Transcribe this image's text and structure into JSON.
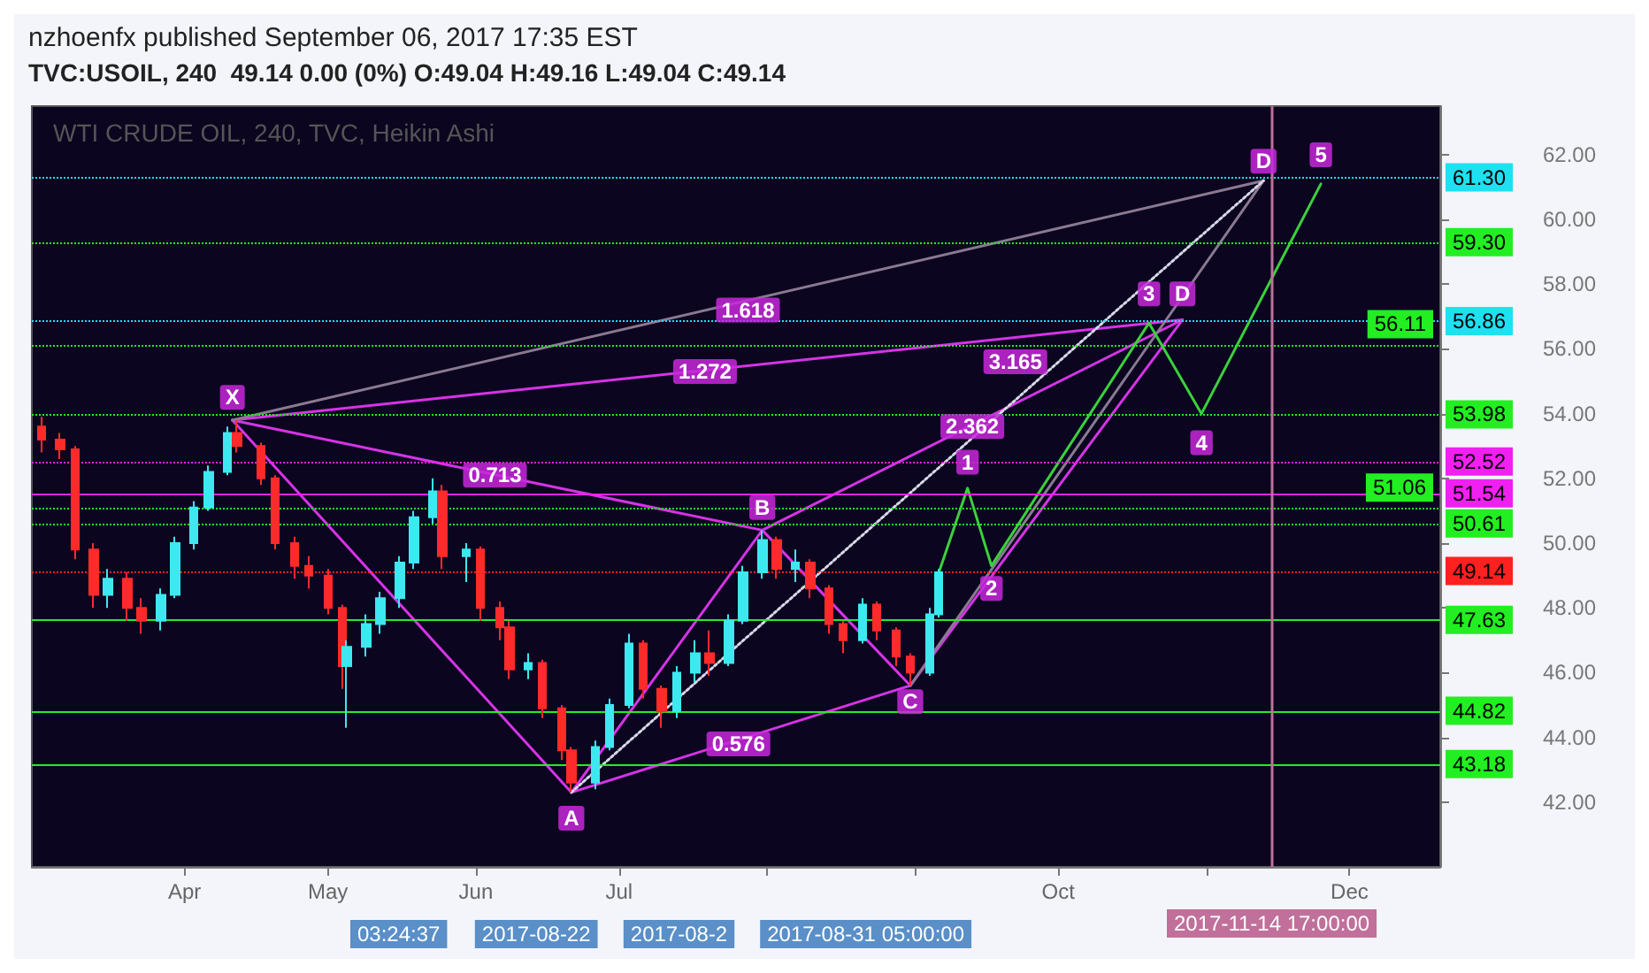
{
  "chart_data": {
    "type": "candlestick",
    "title": "nzhoenfx published September 06, 2017 17:35 EST",
    "subtitle": "TVC:USOIL, 240  49.14 0.00 (0%) O:49.04 H:49.16 L:49.04 C:49.14",
    "x": [
      "2017-03-02",
      "2017-03-06",
      "2017-03-09",
      "2017-03-13",
      "2017-03-16",
      "2017-03-20",
      "2017-03-23",
      "2017-03-27",
      "2017-03-30",
      "2017-04-03",
      "2017-04-06",
      "2017-04-10",
      "2017-04-12",
      "2017-04-17",
      "2017-04-20",
      "2017-04-24",
      "2017-04-27",
      "2017-05-01",
      "2017-05-04",
      "2017-05-05",
      "2017-05-09",
      "2017-05-12",
      "2017-05-16",
      "2017-05-19",
      "2017-05-23",
      "2017-05-25",
      "2017-05-30",
      "2017-06-02",
      "2017-06-06",
      "2017-06-08",
      "2017-06-12",
      "2017-06-15",
      "2017-06-19",
      "2017-06-21",
      "2017-06-26",
      "2017-06-29",
      "2017-07-03",
      "2017-07-06",
      "2017-07-10",
      "2017-07-13",
      "2017-07-17",
      "2017-07-20",
      "2017-07-24",
      "2017-07-27",
      "2017-07-31",
      "2017-08-03",
      "2017-08-07",
      "2017-08-10",
      "2017-08-14",
      "2017-08-17",
      "2017-08-21",
      "2017-08-24",
      "2017-08-28",
      "2017-08-31",
      "2017-09-04",
      "2017-09-06"
    ],
    "ohlc": [
      [
        53.6,
        53.9,
        52.8,
        53.2
      ],
      [
        53.2,
        53.4,
        52.6,
        52.9
      ],
      [
        52.9,
        53.0,
        49.5,
        49.8
      ],
      [
        49.8,
        50.0,
        48.0,
        48.4
      ],
      [
        48.4,
        49.2,
        48.0,
        48.9
      ],
      [
        48.9,
        49.1,
        47.6,
        48.0
      ],
      [
        48.0,
        48.3,
        47.2,
        47.6
      ],
      [
        47.6,
        48.6,
        47.3,
        48.4
      ],
      [
        48.4,
        50.2,
        48.3,
        50.0
      ],
      [
        50.0,
        51.3,
        49.8,
        51.1
      ],
      [
        51.1,
        52.4,
        51.0,
        52.2
      ],
      [
        52.2,
        53.6,
        52.1,
        53.4
      ],
      [
        53.4,
        53.8,
        52.8,
        53.0
      ],
      [
        53.0,
        53.1,
        51.8,
        52.0
      ],
      [
        52.0,
        52.1,
        49.8,
        50.0
      ],
      [
        50.0,
        50.2,
        48.9,
        49.3
      ],
      [
        49.3,
        49.6,
        48.6,
        49.0
      ],
      [
        49.0,
        49.2,
        47.8,
        48.0
      ],
      [
        48.0,
        48.1,
        45.5,
        46.2
      ],
      [
        46.2,
        47.0,
        44.3,
        46.8
      ],
      [
        46.8,
        47.8,
        46.5,
        47.5
      ],
      [
        47.5,
        48.5,
        47.2,
        48.3
      ],
      [
        48.3,
        49.6,
        48.0,
        49.4
      ],
      [
        49.4,
        51.0,
        49.2,
        50.8
      ],
      [
        50.8,
        52.0,
        50.6,
        51.6
      ],
      [
        51.6,
        51.8,
        49.2,
        49.6
      ],
      [
        49.6,
        50.0,
        48.8,
        49.8
      ],
      [
        49.8,
        49.9,
        47.6,
        48.0
      ],
      [
        48.0,
        48.2,
        47.0,
        47.4
      ],
      [
        47.4,
        47.6,
        45.8,
        46.1
      ],
      [
        46.1,
        46.6,
        45.8,
        46.3
      ],
      [
        46.3,
        46.4,
        44.6,
        44.9
      ],
      [
        44.9,
        45.0,
        43.3,
        43.6
      ],
      [
        43.6,
        43.7,
        42.3,
        42.6
      ],
      [
        42.6,
        43.9,
        42.4,
        43.7
      ],
      [
        43.7,
        45.2,
        43.6,
        45.0
      ],
      [
        45.0,
        47.2,
        44.9,
        46.9
      ],
      [
        46.9,
        47.0,
        45.2,
        45.5
      ],
      [
        45.5,
        45.6,
        44.3,
        44.8
      ],
      [
        44.8,
        46.2,
        44.6,
        46.0
      ],
      [
        46.0,
        47.0,
        45.7,
        46.6
      ],
      [
        46.6,
        47.3,
        45.9,
        46.3
      ],
      [
        46.3,
        47.8,
        46.2,
        47.6
      ],
      [
        47.6,
        49.3,
        47.5,
        49.1
      ],
      [
        49.1,
        50.4,
        48.9,
        50.1
      ],
      [
        50.1,
        50.2,
        48.9,
        49.2
      ],
      [
        49.2,
        49.8,
        48.8,
        49.4
      ],
      [
        49.4,
        49.5,
        48.3,
        48.6
      ],
      [
        48.6,
        48.7,
        47.2,
        47.5
      ],
      [
        47.5,
        47.6,
        46.6,
        47.0
      ],
      [
        47.0,
        48.3,
        46.9,
        48.1
      ],
      [
        48.1,
        48.2,
        47.0,
        47.3
      ],
      [
        47.3,
        47.4,
        46.2,
        46.5
      ],
      [
        46.5,
        46.6,
        45.6,
        46.0
      ],
      [
        46.0,
        48.0,
        45.9,
        47.8
      ],
      [
        47.8,
        49.2,
        47.7,
        49.1
      ]
    ],
    "colors": [
      "#ff2a2a",
      "#ff2a2a",
      "#ff2a2a",
      "#ff2a2a",
      "#3ee8f0",
      "#ff2a2a",
      "#ff2a2a",
      "#3ee8f0",
      "#3ee8f0",
      "#3ee8f0",
      "#3ee8f0",
      "#3ee8f0",
      "#ff2a2a",
      "#ff2a2a",
      "#ff2a2a",
      "#ff2a2a",
      "#ff2a2a",
      "#ff2a2a",
      "#ff2a2a",
      "#3ee8f0",
      "#3ee8f0",
      "#3ee8f0",
      "#3ee8f0",
      "#3ee8f0",
      "#3ee8f0",
      "#ff2a2a",
      "#3ee8f0",
      "#ff2a2a",
      "#ff2a2a",
      "#ff2a2a",
      "#3ee8f0",
      "#ff2a2a",
      "#ff2a2a",
      "#ff2a2a",
      "#3ee8f0",
      "#3ee8f0",
      "#3ee8f0",
      "#ff2a2a",
      "#ff2a2a",
      "#3ee8f0",
      "#3ee8f0",
      "#ff2a2a",
      "#3ee8f0",
      "#3ee8f0",
      "#3ee8f0",
      "#ff2a2a",
      "#3ee8f0",
      "#ff2a2a",
      "#ff2a2a",
      "#ff2a2a",
      "#3ee8f0",
      "#ff2a2a",
      "#ff2a2a",
      "#ff2a2a",
      "#3ee8f0",
      "#3ee8f0"
    ],
    "series": [
      {
        "type": "line",
        "color": "#d633e6",
        "x": [
          "2017-04-11",
          "2017-06-21",
          "2017-07-31",
          "2017-08-31",
          "2017-10-27"
        ],
        "values": [
          53.8,
          42.3,
          50.4,
          45.6,
          56.9
        ]
      },
      {
        "type": "line",
        "color": "#d633e6",
        "x": [
          "2017-04-11",
          "2017-07-31"
        ],
        "values": [
          53.8,
          50.4
        ]
      },
      {
        "type": "line",
        "color": "#d633e6",
        "x": [
          "2017-06-21",
          "2017-08-31"
        ],
        "values": [
          42.3,
          45.6
        ]
      },
      {
        "type": "line",
        "color": "#d633e6",
        "x": [
          "2017-04-11",
          "2017-10-27"
        ],
        "values": [
          53.8,
          56.9
        ]
      },
      {
        "type": "line",
        "color": "#d633e6",
        "x": [
          "2017-07-31",
          "2017-10-27"
        ],
        "values": [
          50.4,
          56.9
        ]
      },
      {
        "type": "line",
        "color": "#8a7a90",
        "x": [
          "2017-04-11",
          "2017-11-13"
        ],
        "values": [
          53.8,
          61.2
        ]
      },
      {
        "type": "line",
        "color": "#8a7a90",
        "x": [
          "2017-08-31",
          "2017-11-13"
        ],
        "values": [
          45.6,
          61.2
        ]
      },
      {
        "type": "line",
        "color": "#d8d8e8",
        "line_style": "dotted",
        "x": [
          "2017-06-21",
          "2017-11-13"
        ],
        "values": [
          42.3,
          61.2
        ]
      },
      {
        "type": "line",
        "color": "#3bd13b",
        "x": [
          "2017-09-06",
          "2017-09-12",
          "2017-09-17",
          "2017-10-20",
          "2017-10-31",
          "2017-11-25"
        ],
        "values": [
          49.1,
          51.7,
          49.3,
          56.8,
          54.0,
          61.1
        ]
      }
    ],
    "xlim": [
      "2017-02-28",
      "2017-12-20"
    ],
    "xticks": [
      {
        "value": "2017-04-01",
        "label": "Apr"
      },
      {
        "value": "2017-05-01",
        "label": "May"
      },
      {
        "value": "2017-06-01",
        "label": "Jun"
      },
      {
        "value": "2017-07-01",
        "label": "Jul"
      },
      {
        "value": "2017-08-01",
        "label": null
      },
      {
        "value": "2017-09-01",
        "label": null
      },
      {
        "value": "2017-10-01",
        "label": "Oct"
      },
      {
        "value": "2017-11-01",
        "label": null
      },
      {
        "value": "2017-12-01",
        "label": "Dec"
      }
    ],
    "ylim": [
      40,
      63.5
    ],
    "yticks": [
      {
        "value": 42,
        "label": "42.00"
      },
      {
        "value": 44,
        "label": "44.00"
      },
      {
        "value": 46,
        "label": "46.00"
      },
      {
        "value": 48,
        "label": "48.00"
      },
      {
        "value": 50,
        "label": "50.00"
      },
      {
        "value": 52,
        "label": "52.00"
      },
      {
        "value": 54,
        "label": "54.00"
      },
      {
        "value": 56,
        "label": "56.00"
      },
      {
        "value": 58,
        "label": "58.00"
      },
      {
        "value": 60,
        "label": "60.00"
      },
      {
        "value": 62,
        "label": "62.00"
      }
    ],
    "marker": "none",
    "ref_lines": [
      {
        "axis": "y",
        "value": 61.3,
        "label": "61.30",
        "color": "#1ee0f0",
        "line_style": "dotted"
      },
      {
        "axis": "y",
        "value": 59.3,
        "label": "59.30",
        "color": "#22ee22",
        "line_style": "dotted"
      },
      {
        "axis": "y",
        "value": 56.86,
        "label": "56.86",
        "color": "#1ee0f0",
        "line_style": "dotted"
      },
      {
        "axis": "y",
        "value": 56.11,
        "label": "56.11",
        "color": "#22ee22",
        "line_style": "dotted"
      },
      {
        "axis": "y",
        "value": 53.98,
        "label": "53.98",
        "color": "#22ee22",
        "line_style": "dotted"
      },
      {
        "axis": "y",
        "value": 52.52,
        "label": "52.52",
        "color": "#f020f0",
        "line_style": "dotted"
      },
      {
        "axis": "y",
        "value": 51.54,
        "label": "51.54",
        "color": "#f020f0",
        "line_style": "solid"
      },
      {
        "axis": "y",
        "value": 51.06,
        "label": "51.06",
        "color": "#22ee22",
        "line_style": "dotted"
      },
      {
        "axis": "y",
        "value": 50.61,
        "label": "50.61",
        "color": "#22ee22",
        "line_style": "dotted"
      },
      {
        "axis": "y",
        "value": 49.14,
        "label": "49.14",
        "color": "#ff2020",
        "line_style": "dotted"
      },
      {
        "axis": "y",
        "value": 47.63,
        "label": "47.63",
        "color": "#22ee22",
        "line_style": "solid"
      },
      {
        "axis": "y",
        "value": 44.82,
        "label": "44.82",
        "color": "#22ee22",
        "line_style": "solid"
      },
      {
        "axis": "y",
        "value": 43.18,
        "label": "43.18",
        "color": "#22ee22",
        "line_style": "solid"
      },
      {
        "axis": "x",
        "value": "2017-11-14T17:00",
        "label": "2017-11-14 17:00:00",
        "color": "#c0709a",
        "line_style": "solid"
      }
    ],
    "annotations": [
      "WTI CRUDE OIL, 240, TVC, Heikin Ashi",
      "03:24:37",
      "2017-08-22",
      "2017-08-2",
      "2017-08-31 05:00:00",
      {
        "text": "X",
        "x": "2017-04-11",
        "y": 54.5
      },
      {
        "text": "A",
        "x": "2017-06-21",
        "y": 41.5
      },
      {
        "text": "B",
        "x": "2017-07-31",
        "y": 51.1
      },
      {
        "text": "C",
        "x": "2017-08-31",
        "y": 45.1
      },
      {
        "text": "D",
        "x": "2017-10-27",
        "y": 57.7
      },
      {
        "text": "D",
        "x": "2017-11-13",
        "y": 61.8
      },
      {
        "text": "0.713",
        "x": "2017-06-05",
        "y": 52.1
      },
      {
        "text": "1.272",
        "x": "2017-07-19",
        "y": 55.3
      },
      {
        "text": "1.618",
        "x": "2017-07-28",
        "y": 57.2
      },
      {
        "text": "0.576",
        "x": "2017-07-26",
        "y": 43.8
      },
      {
        "text": "2.362",
        "x": "2017-09-13",
        "y": 53.6
      },
      {
        "text": "3.165",
        "x": "2017-09-22",
        "y": 55.6
      },
      {
        "text": "1",
        "x": "2017-09-12",
        "y": 52.5
      },
      {
        "text": "2",
        "x": "2017-09-17",
        "y": 48.6
      },
      {
        "text": "3",
        "x": "2017-10-20",
        "y": 57.7
      },
      {
        "text": "4",
        "x": "2017-10-31",
        "y": 53.1
      },
      {
        "text": "5",
        "x": "2017-11-25",
        "y": 62.0
      }
    ]
  }
}
